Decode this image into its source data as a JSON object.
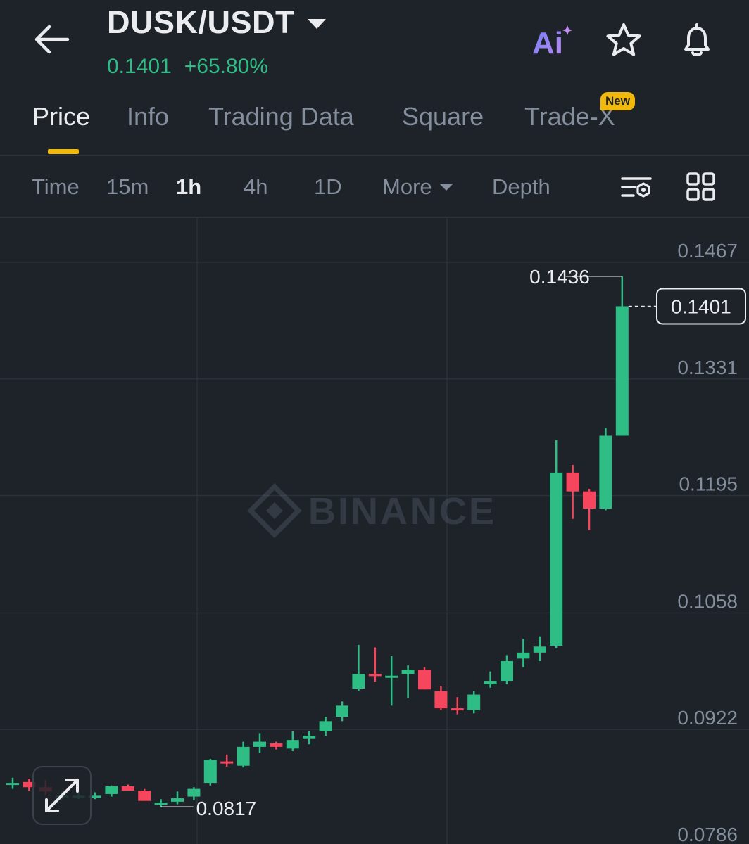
{
  "header": {
    "pair": "DUSK/USDT",
    "price": "0.1401",
    "change": "+65.80%",
    "icons": [
      "back-arrow-icon",
      "ai-icon",
      "star-icon",
      "bell-icon"
    ]
  },
  "tabs": [
    {
      "label": "Price",
      "active": true
    },
    {
      "label": "Info"
    },
    {
      "label": "Trading Data"
    },
    {
      "label": "Square"
    },
    {
      "label": "Trade-X",
      "badge": "New"
    }
  ],
  "intervals": [
    {
      "label": "Time"
    },
    {
      "label": "15m"
    },
    {
      "label": "1h",
      "active": true
    },
    {
      "label": "4h"
    },
    {
      "label": "1D"
    },
    {
      "label": "More"
    },
    {
      "label": "Depth"
    }
  ],
  "colors": {
    "background": "#1e2329",
    "up": "#2ebd85",
    "down": "#f6465d",
    "accent": "#f0b90b",
    "muted": "#848e9c"
  },
  "chart_data": {
    "type": "candlestick",
    "watermark": "BINANCE",
    "y_axis_labels": [
      "0.1467",
      "0.1331",
      "0.1195",
      "0.1058",
      "0.0922",
      "0.0786"
    ],
    "ylim": [
      0.0786,
      0.1467
    ],
    "current_price_label": "0.1401",
    "high_label": "0.1436",
    "low_label": "0.0817",
    "candles": [
      {
        "o": 0.0845,
        "h": 0.0851,
        "l": 0.0838,
        "c": 0.0845
      },
      {
        "o": 0.0846,
        "h": 0.085,
        "l": 0.0836,
        "c": 0.084
      },
      {
        "o": 0.084,
        "h": 0.0848,
        "l": 0.083,
        "c": 0.0835
      },
      {
        "o": 0.083,
        "h": 0.0835,
        "l": 0.0826,
        "c": 0.083
      },
      {
        "o": 0.083,
        "h": 0.0834,
        "l": 0.0826,
        "c": 0.083
      },
      {
        "o": 0.083,
        "h": 0.0834,
        "l": 0.0826,
        "c": 0.083
      },
      {
        "o": 0.0832,
        "h": 0.0842,
        "l": 0.0829,
        "c": 0.0841
      },
      {
        "o": 0.0841,
        "h": 0.0843,
        "l": 0.0836,
        "c": 0.0836
      },
      {
        "o": 0.0836,
        "h": 0.0838,
        "l": 0.0824,
        "c": 0.0824
      },
      {
        "o": 0.0822,
        "h": 0.0826,
        "l": 0.0817,
        "c": 0.0822
      },
      {
        "o": 0.0823,
        "h": 0.0835,
        "l": 0.082,
        "c": 0.0827
      },
      {
        "o": 0.0829,
        "h": 0.084,
        "l": 0.0825,
        "c": 0.0838
      },
      {
        "o": 0.0845,
        "h": 0.0873,
        "l": 0.0842,
        "c": 0.0872
      },
      {
        "o": 0.087,
        "h": 0.0878,
        "l": 0.0864,
        "c": 0.0869
      },
      {
        "o": 0.0865,
        "h": 0.0893,
        "l": 0.0863,
        "c": 0.0887
      },
      {
        "o": 0.0887,
        "h": 0.0903,
        "l": 0.088,
        "c": 0.0893
      },
      {
        "o": 0.0891,
        "h": 0.0893,
        "l": 0.0884,
        "c": 0.0887
      },
      {
        "o": 0.0885,
        "h": 0.0905,
        "l": 0.0882,
        "c": 0.0895
      },
      {
        "o": 0.0897,
        "h": 0.0905,
        "l": 0.089,
        "c": 0.09
      },
      {
        "o": 0.0905,
        "h": 0.0922,
        "l": 0.09,
        "c": 0.0917
      },
      {
        "o": 0.0922,
        "h": 0.094,
        "l": 0.0917,
        "c": 0.0935
      },
      {
        "o": 0.0955,
        "h": 0.1006,
        "l": 0.0952,
        "c": 0.0972
      },
      {
        "o": 0.0972,
        "h": 0.1003,
        "l": 0.0963,
        "c": 0.097
      },
      {
        "o": 0.097,
        "h": 0.0993,
        "l": 0.0935,
        "c": 0.097
      },
      {
        "o": 0.0972,
        "h": 0.0982,
        "l": 0.0944,
        "c": 0.0977
      },
      {
        "o": 0.0977,
        "h": 0.098,
        "l": 0.0954,
        "c": 0.0954
      },
      {
        "o": 0.0952,
        "h": 0.0958,
        "l": 0.093,
        "c": 0.0932
      },
      {
        "o": 0.0932,
        "h": 0.0945,
        "l": 0.0925,
        "c": 0.093
      },
      {
        "o": 0.093,
        "h": 0.0952,
        "l": 0.0926,
        "c": 0.0948
      },
      {
        "o": 0.096,
        "h": 0.0975,
        "l": 0.0956,
        "c": 0.0964
      },
      {
        "o": 0.0964,
        "h": 0.0994,
        "l": 0.096,
        "c": 0.0987
      },
      {
        "o": 0.099,
        "h": 0.1013,
        "l": 0.098,
        "c": 0.0997
      },
      {
        "o": 0.0997,
        "h": 0.1016,
        "l": 0.0987,
        "c": 0.1004
      },
      {
        "o": 0.1005,
        "h": 0.1245,
        "l": 0.1002,
        "c": 0.1207
      },
      {
        "o": 0.1207,
        "h": 0.1216,
        "l": 0.1153,
        "c": 0.1185
      },
      {
        "o": 0.1185,
        "h": 0.1188,
        "l": 0.114,
        "c": 0.1165
      },
      {
        "o": 0.1165,
        "h": 0.1259,
        "l": 0.1163,
        "c": 0.125
      },
      {
        "o": 0.125,
        "h": 0.1436,
        "l": 0.125,
        "c": 0.1401
      }
    ]
  }
}
